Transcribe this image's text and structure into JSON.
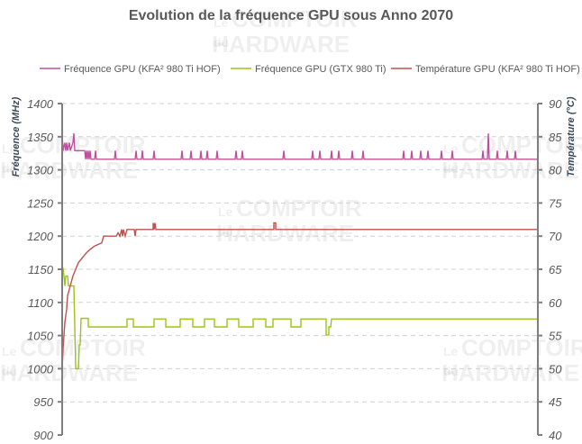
{
  "watermark": {
    "small": "Le",
    "top": "COMPTOIR",
    "mid": "du",
    "bottom": "HARDWARE"
  },
  "chart_data": {
    "type": "line",
    "title": "Evolution de la fréquence GPU sous Anno 2070",
    "ylabel": "Fréquence (MHz)",
    "y2label": "Température (°C)",
    "ylim": [
      900,
      1400
    ],
    "y2lim": [
      40,
      90
    ],
    "yticks": [
      "900",
      "950",
      "1000",
      "1050",
      "1100",
      "1150",
      "1200",
      "1250",
      "1300",
      "1350",
      "1400"
    ],
    "y2ticks": [
      "40",
      "45",
      "50",
      "55",
      "60",
      "65",
      "70",
      "75",
      "80",
      "85",
      "90"
    ],
    "xlim": [
      0,
      527
    ],
    "grid": true,
    "legend_position": "top",
    "series": [
      {
        "name": "Fréquence GPU (KFA² 980 Ti HOF)",
        "axis": "left",
        "color": "#c0509e",
        "points": [
          [
            0,
            1355
          ],
          [
            1,
            1329
          ],
          [
            3,
            1341
          ],
          [
            4,
            1329
          ],
          [
            5,
            1341
          ],
          [
            6,
            1329
          ],
          [
            8,
            1341
          ],
          [
            9,
            1329
          ],
          [
            12,
            1341
          ],
          [
            13,
            1355
          ],
          [
            14,
            1329
          ],
          [
            25,
            1329
          ],
          [
            26,
            1316
          ],
          [
            27,
            1329
          ],
          [
            28,
            1316
          ],
          [
            29,
            1329
          ],
          [
            30,
            1316
          ],
          [
            31,
            1329
          ],
          [
            32,
            1316
          ],
          [
            36,
            1316
          ],
          [
            37,
            1329
          ],
          [
            38,
            1316
          ],
          [
            58,
            1316
          ],
          [
            59,
            1329
          ],
          [
            60,
            1316
          ],
          [
            81,
            1316
          ],
          [
            82,
            1329
          ],
          [
            83,
            1316
          ],
          [
            88,
            1316
          ],
          [
            89,
            1329
          ],
          [
            90,
            1316
          ],
          [
            101,
            1316
          ],
          [
            102,
            1329
          ],
          [
            103,
            1316
          ],
          [
            132,
            1316
          ],
          [
            133,
            1329
          ],
          [
            134,
            1316
          ],
          [
            142,
            1316
          ],
          [
            143,
            1329
          ],
          [
            144,
            1316
          ],
          [
            153,
            1316
          ],
          [
            154,
            1329
          ],
          [
            155,
            1316
          ],
          [
            160,
            1316
          ],
          [
            161,
            1329
          ],
          [
            162,
            1316
          ],
          [
            171,
            1316
          ],
          [
            172,
            1329
          ],
          [
            173,
            1316
          ],
          [
            192,
            1316
          ],
          [
            193,
            1329
          ],
          [
            194,
            1316
          ],
          [
            199,
            1316
          ],
          [
            200,
            1329
          ],
          [
            201,
            1316
          ],
          [
            245,
            1316
          ],
          [
            246,
            1329
          ],
          [
            247,
            1316
          ],
          [
            277,
            1316
          ],
          [
            278,
            1329
          ],
          [
            279,
            1316
          ],
          [
            285,
            1316
          ],
          [
            286,
            1329
          ],
          [
            287,
            1316
          ],
          [
            298,
            1316
          ],
          [
            299,
            1329
          ],
          [
            300,
            1316
          ],
          [
            306,
            1316
          ],
          [
            307,
            1329
          ],
          [
            308,
            1316
          ],
          [
            321,
            1316
          ],
          [
            322,
            1329
          ],
          [
            323,
            1316
          ],
          [
            333,
            1316
          ],
          [
            334,
            1329
          ],
          [
            335,
            1316
          ],
          [
            378,
            1316
          ],
          [
            379,
            1329
          ],
          [
            380,
            1316
          ],
          [
            387,
            1316
          ],
          [
            388,
            1329
          ],
          [
            389,
            1316
          ],
          [
            397,
            1316
          ],
          [
            398,
            1329
          ],
          [
            399,
            1316
          ],
          [
            405,
            1316
          ],
          [
            406,
            1329
          ],
          [
            407,
            1316
          ],
          [
            420,
            1316
          ],
          [
            421,
            1329
          ],
          [
            422,
            1316
          ],
          [
            432,
            1316
          ],
          [
            433,
            1329
          ],
          [
            434,
            1316
          ],
          [
            466,
            1316
          ],
          [
            467,
            1329
          ],
          [
            468,
            1316
          ],
          [
            472,
            1316
          ],
          [
            473,
            1355
          ],
          [
            474,
            1316
          ],
          [
            482,
            1316
          ],
          [
            483,
            1329
          ],
          [
            484,
            1316
          ],
          [
            493,
            1316
          ],
          [
            494,
            1329
          ],
          [
            495,
            1316
          ],
          [
            502,
            1316
          ],
          [
            503,
            1329
          ],
          [
            504,
            1316
          ],
          [
            527,
            1316
          ]
        ]
      },
      {
        "name": "Fréquence GPU (GTX 980 Ti)",
        "axis": "left",
        "color": "#9bc31c",
        "points": [
          [
            0,
            1140
          ],
          [
            1,
            1152
          ],
          [
            2,
            1140
          ],
          [
            3,
            1125
          ],
          [
            4,
            1140
          ],
          [
            6,
            1140
          ],
          [
            7,
            1125
          ],
          [
            13,
            1125
          ],
          [
            15,
            1000
          ],
          [
            18,
            1000
          ],
          [
            19,
            1036
          ],
          [
            20,
            1036
          ],
          [
            21,
            1076
          ],
          [
            29,
            1076
          ],
          [
            29,
            1063
          ],
          [
            72,
            1063
          ],
          [
            72,
            1075
          ],
          [
            79,
            1075
          ],
          [
            79,
            1063
          ],
          [
            102,
            1063
          ],
          [
            102,
            1075
          ],
          [
            115,
            1075
          ],
          [
            115,
            1063
          ],
          [
            131,
            1063
          ],
          [
            131,
            1075
          ],
          [
            145,
            1075
          ],
          [
            145,
            1063
          ],
          [
            158,
            1063
          ],
          [
            158,
            1075
          ],
          [
            169,
            1075
          ],
          [
            169,
            1063
          ],
          [
            183,
            1063
          ],
          [
            183,
            1075
          ],
          [
            196,
            1075
          ],
          [
            196,
            1063
          ],
          [
            212,
            1063
          ],
          [
            212,
            1075
          ],
          [
            226,
            1075
          ],
          [
            226,
            1063
          ],
          [
            234,
            1063
          ],
          [
            234,
            1075
          ],
          [
            254,
            1075
          ],
          [
            254,
            1063
          ],
          [
            265,
            1063
          ],
          [
            265,
            1075
          ],
          [
            293,
            1075
          ],
          [
            293,
            1051
          ],
          [
            296,
            1051
          ],
          [
            296,
            1063
          ],
          [
            298,
            1063
          ],
          [
            299,
            1075
          ],
          [
            527,
            1075
          ]
        ]
      },
      {
        "name": "Température GPU  (KFA² 980 Ti HOF)",
        "axis": "right",
        "color": "#c0504d",
        "points": [
          [
            0,
            50
          ],
          [
            1,
            53
          ],
          [
            2,
            55
          ],
          [
            3,
            57
          ],
          [
            5,
            59
          ],
          [
            6,
            61
          ],
          [
            8,
            62
          ],
          [
            10,
            63
          ],
          [
            12,
            64
          ],
          [
            15,
            65
          ],
          [
            18,
            66
          ],
          [
            21,
            66.5
          ],
          [
            24,
            67
          ],
          [
            27,
            67.5
          ],
          [
            31,
            68
          ],
          [
            36,
            68.5
          ],
          [
            44,
            69
          ],
          [
            46,
            70
          ],
          [
            60,
            70
          ],
          [
            62,
            70.5
          ],
          [
            64,
            70
          ],
          [
            66,
            71
          ],
          [
            67,
            70
          ],
          [
            68,
            71
          ],
          [
            70,
            70
          ],
          [
            72,
            71
          ],
          [
            80,
            71
          ],
          [
            81,
            70
          ],
          [
            82,
            71
          ],
          [
            101,
            71
          ],
          [
            101,
            72
          ],
          [
            102,
            71
          ],
          [
            103,
            72
          ],
          [
            104,
            71
          ],
          [
            235,
            71
          ],
          [
            235,
            72
          ],
          [
            237,
            72
          ],
          [
            237,
            71
          ],
          [
            527,
            71
          ]
        ]
      }
    ]
  }
}
